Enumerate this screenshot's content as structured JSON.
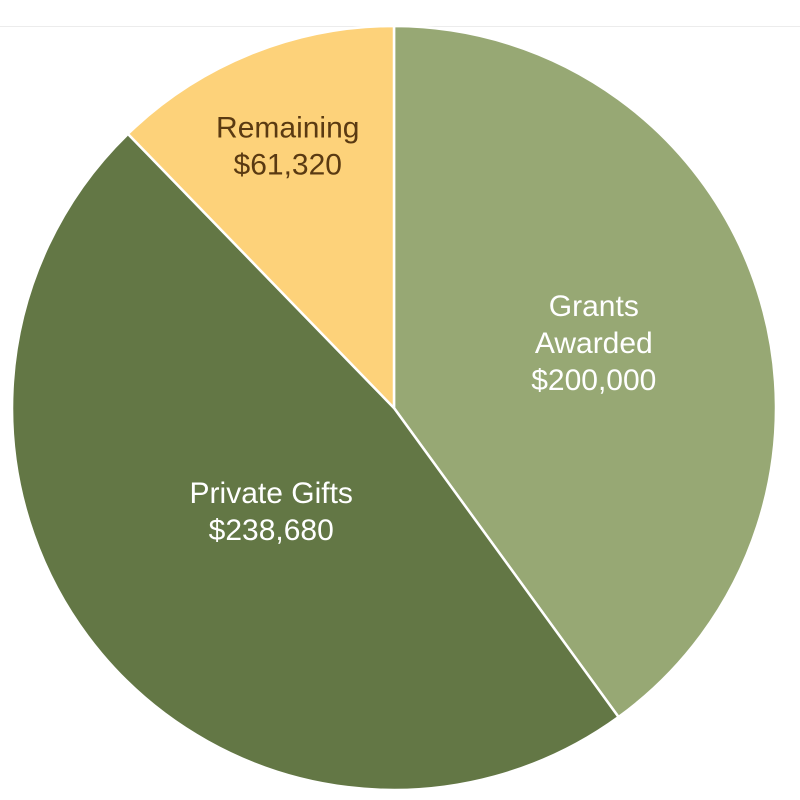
{
  "chart_data": {
    "type": "pie",
    "title": "",
    "slices": [
      {
        "category": "Grants Awarded",
        "value": 200000,
        "value_label": "$200,000",
        "color": "#97a874",
        "label_color": "#ffffff"
      },
      {
        "category": "Private Gifts",
        "value": 238680,
        "value_label": "$238,680",
        "color": "#637745",
        "label_color": "#ffffff"
      },
      {
        "category": "Remaining",
        "value": 61320,
        "value_label": "$61,320",
        "color": "#fdd27a",
        "label_color": "#5a3a12"
      }
    ],
    "start_angle": "12 o'clock",
    "direction": "clockwise",
    "legend": "none"
  }
}
